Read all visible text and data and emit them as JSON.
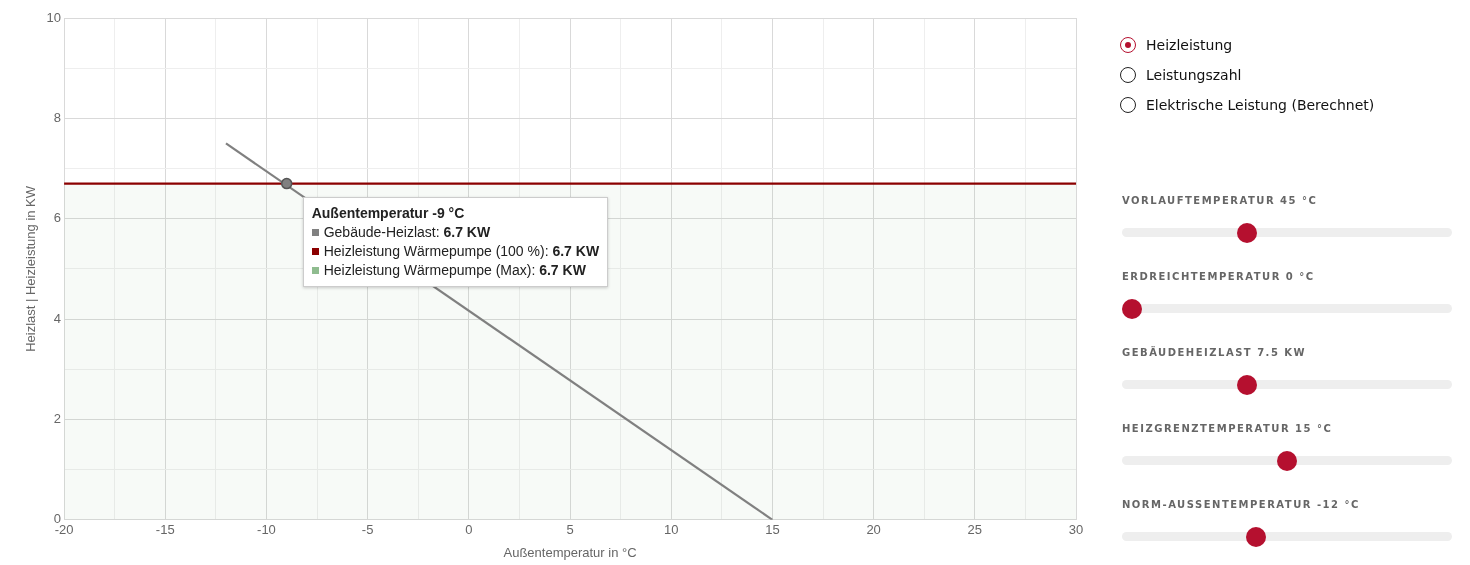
{
  "chart_data": [
    {
      "type": "line",
      "xlabel": "Außentemperatur in °C",
      "ylabel": "Heizlast | Heizleistung in KW",
      "xlim": [
        -20,
        30
      ],
      "ylim": [
        0,
        10
      ],
      "xticks": [
        -20,
        {
          "value": -17.5,
          "label": null
        },
        -15,
        {
          "value": -12.5,
          "label": null
        },
        -10,
        {
          "value": -7.5,
          "label": null
        },
        -5,
        {
          "value": -2.5,
          "label": null
        },
        0,
        {
          "value": 2.5,
          "label": null
        },
        5,
        {
          "value": 7.5,
          "label": null
        },
        10,
        {
          "value": 12.5,
          "label": null
        },
        15,
        {
          "value": 17.5,
          "label": null
        },
        20,
        {
          "value": 22.5,
          "label": null
        },
        25,
        {
          "value": 27.5,
          "label": null
        },
        30
      ],
      "yticks": [
        0,
        {
          "value": 1,
          "label": null
        },
        2,
        {
          "value": 3,
          "label": null
        },
        4,
        {
          "value": 5,
          "label": null
        },
        6,
        {
          "value": 7,
          "label": null
        },
        8,
        {
          "value": 9,
          "label": null
        },
        10
      ],
      "grid": true,
      "legend": false,
      "marker": "none",
      "series": [
        {
          "name": "Gebäude-Heizlast",
          "type": "line",
          "color": "#808080",
          "x": [
            -12,
            15
          ],
          "values": [
            7.5,
            0
          ]
        },
        {
          "name": "Heizleistung Wärmepumpe (100 %)",
          "type": "line",
          "color": "#8b0000",
          "x": [
            -20,
            30
          ],
          "values": [
            6.7,
            6.7
          ]
        },
        {
          "name": "Heizleistung Wärmepumpe (Max)",
          "type": "area",
          "color": "#8fbc8f",
          "x": [
            -20,
            30
          ],
          "values": [
            6.7,
            6.7
          ]
        }
      ],
      "annotations": [
        {
          "text": "Außentemperatur -9 °C",
          "x": -9,
          "y": 6.7
        },
        ": 6.7 KW",
        ": 6.7 KW",
        ": 6.7 KW"
      ]
    },
    {
      "type": "other",
      "annotations": [
        "Heizleistung",
        "Leistungszahl",
        "Elektrische Leistung (Berechnet)"
      ]
    },
    {
      "type": "other",
      "annotations": [
        "VORLAUFTEMPERATUR 45 °C",
        "ERDREICHTEMPERATUR 0 °C",
        "GEBÄUDEHEIZLAST 7.5 KW",
        "HEIZGRENZTEMPERATUR 15 °C",
        "NORM-AUSSENTEMPERATUR -12 °C"
      ]
    }
  ]
}
